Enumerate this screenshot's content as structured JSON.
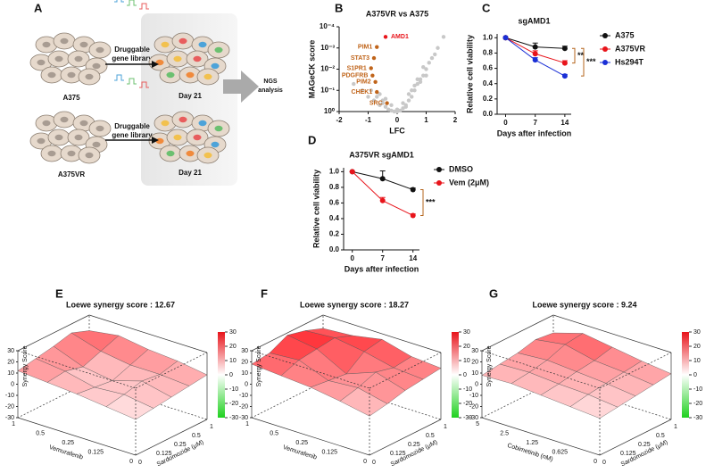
{
  "panel_a": {
    "letter": "A",
    "cells_top": "A375",
    "cells_bottom": "A375VR",
    "library": [
      "Druggable",
      "gene library"
    ],
    "day": "Day 21",
    "ngs": [
      "NGS",
      "analysis"
    ]
  },
  "chart_data": [
    {
      "type": "scatter",
      "letter": "B",
      "title": "A375VR vs A375",
      "xlabel": "LFC",
      "ylabel": "MAGeCK score",
      "xlim": [
        -2,
        2
      ],
      "xticks": [
        -2,
        -1,
        0,
        1,
        2
      ],
      "log_y": true,
      "ylim": [
        1,
        0.0001
      ],
      "yticks": [
        {
          "value": 0.0001,
          "label": "10⁻⁴"
        },
        {
          "value": 0.001,
          "label": "10⁻³"
        },
        {
          "value": 0.01,
          "label": "10⁻²"
        },
        {
          "value": 0.1,
          "label": "10⁻¹"
        },
        {
          "value": 1,
          "label": "10⁰"
        }
      ],
      "points": {
        "color": "#c8c8c8",
        "x": [
          -1.5,
          -1.2,
          -1.0,
          -0.9,
          -0.8,
          -0.7,
          -0.6,
          -0.5,
          -0.4,
          -0.3,
          -0.2,
          -0.1,
          0,
          0.1,
          0.2,
          0.3,
          0.4,
          0.5,
          0.6,
          0.7,
          0.8,
          0.9,
          1.0,
          1.1,
          1.2,
          1.4,
          1.6,
          -0.6,
          -0.4,
          -0.2,
          0,
          0.2,
          0.4,
          0.6,
          0.8,
          1.0,
          -0.5,
          0.3,
          0.5,
          0.7,
          0.9,
          1.3
        ],
        "y": [
          0.05,
          0.1,
          0.2,
          0.1,
          0.3,
          0.2,
          0.5,
          0.4,
          0.6,
          0.8,
          0.9,
          1,
          1,
          0.9,
          0.7,
          0.5,
          0.3,
          0.2,
          0.1,
          0.05,
          0.03,
          0.02,
          0.01,
          0.005,
          0.003,
          0.001,
          0.0003,
          0.15,
          0.25,
          0.5,
          0.8,
          0.4,
          0.15,
          0.06,
          0.04,
          0.02,
          0.3,
          0.6,
          0.1,
          0.03,
          0.008,
          0.002
        ]
      },
      "highlights": {
        "labels": [
          "AMD1",
          "PIM1",
          "STAT3",
          "S1PR1",
          "PDGFRB",
          "PIM2",
          "CHEK1",
          "SRC"
        ],
        "x": [
          -0.4,
          -0.7,
          -0.8,
          -0.9,
          -0.85,
          -0.75,
          -0.7,
          -0.35
        ],
        "y": [
          0.0003,
          0.0009,
          0.003,
          0.009,
          0.02,
          0.04,
          0.12,
          0.4
        ],
        "colors": [
          "#e8141b",
          "#c0641a",
          "#c0641a",
          "#c0641a",
          "#c0641a",
          "#c0641a",
          "#c0641a",
          "#c0641a"
        ]
      }
    },
    {
      "type": "line",
      "letter": "C",
      "title": "sgAMD1",
      "xlabel": "Days after infection",
      "ylabel": "Relative cell viability",
      "x": [
        0,
        7,
        14
      ],
      "xlim": [
        -2,
        15.5
      ],
      "xticks": [
        0,
        7,
        14
      ],
      "ylim": [
        0,
        1.05
      ],
      "yticks": [
        {
          "value": 0,
          "label": "0.0"
        },
        0.2,
        0.4,
        0.6,
        0.8,
        {
          "value": 1,
          "label": "1.0"
        }
      ],
      "series": [
        {
          "name": "A375",
          "color": "#111111",
          "values": [
            1.0,
            0.88,
            0.86
          ],
          "errors": [
            0,
            0.05,
            0.03
          ]
        },
        {
          "name": "A375VR",
          "color": "#e8141b",
          "values": [
            1.0,
            0.79,
            0.67
          ],
          "errors": [
            0,
            0.04,
            0.03
          ]
        },
        {
          "name": "Hs294T",
          "color": "#1a2fd6",
          "values": [
            1.0,
            0.71,
            0.5
          ],
          "errors": [
            0,
            0.03,
            0.02
          ]
        }
      ],
      "significance": [
        "**",
        "***"
      ],
      "annotation_color": "#b5651d"
    },
    {
      "type": "line",
      "letter": "D",
      "title": "A375VR sgAMD1",
      "xlabel": "Days after infection",
      "ylabel": "Relative cell viability",
      "x": [
        0,
        7,
        14
      ],
      "xlim": [
        -2,
        15.5
      ],
      "xticks": [
        0,
        7,
        14
      ],
      "ylim": [
        0,
        1.05
      ],
      "yticks": [
        {
          "value": 0,
          "label": "0.0"
        },
        0.2,
        0.4,
        0.6,
        0.8,
        {
          "value": 1,
          "label": "1.0"
        }
      ],
      "series": [
        {
          "name": "DMSO",
          "color": "#111111",
          "values": [
            1.0,
            0.91,
            0.77
          ],
          "errors": [
            0,
            0.1,
            0.02
          ]
        },
        {
          "name": "Vem (2μM)",
          "color": "#e8141b",
          "values": [
            1.0,
            0.63,
            0.44
          ],
          "errors": [
            0,
            0.04,
            0.02
          ]
        }
      ],
      "significance": [
        "***"
      ],
      "annotation_color": "#b5651d"
    },
    {
      "type": "surface",
      "letter": "E",
      "title": "Loewe synergy score : 12.67",
      "zlabel": "Synergy Score",
      "xlabel": "Sardomozide (μM)",
      "ylabel": "Vemurafenib",
      "x_categories": [
        "0",
        "0.125",
        "0.25",
        "0.5",
        "1"
      ],
      "y_categories": [
        "0",
        "0.125",
        "0.25",
        "0.5",
        "1"
      ],
      "zlim": [
        -30,
        30
      ],
      "zticks": [
        30,
        20,
        10,
        0,
        -10,
        -20,
        -30
      ],
      "z": [
        [
          2,
          4,
          6,
          8,
          10
        ],
        [
          5,
          8,
          12,
          10,
          14
        ],
        [
          8,
          6,
          4,
          10,
          16
        ],
        [
          10,
          12,
          8,
          14,
          20
        ],
        [
          12,
          15,
          18,
          22,
          16
        ]
      ]
    },
    {
      "type": "surface",
      "letter": "F",
      "title": "Loewe synergy score : 18.27",
      "zlabel": "Synergy Score",
      "xlabel": "Sardomozide (μM)",
      "ylabel": "Vemurafenib",
      "x_categories": [
        "0",
        "0.125",
        "0.25",
        "0.5",
        "1"
      ],
      "y_categories": [
        "0",
        "0.125",
        "0.25",
        "0.5",
        "1"
      ],
      "zlim": [
        -30,
        30
      ],
      "zticks": [
        30,
        20,
        10,
        0,
        -10,
        -20,
        -30
      ],
      "z": [
        [
          5,
          8,
          12,
          14,
          16
        ],
        [
          10,
          14,
          20,
          16,
          18
        ],
        [
          14,
          12,
          10,
          22,
          25
        ],
        [
          16,
          22,
          24,
          26,
          20
        ],
        [
          18,
          20,
          28,
          24,
          18
        ]
      ]
    },
    {
      "type": "surface",
      "letter": "G",
      "title": "Loewe synergy score : 9.24",
      "zlabel": "Synergy Score",
      "xlabel": "Sardomozide (μM)",
      "ylabel": "Cobimetinib (nM)",
      "x_categories": [
        "0",
        "0.125",
        "0.25",
        "0.5",
        "1"
      ],
      "y_categories": [
        "0",
        "0.625",
        "1.25",
        "2.5",
        "5"
      ],
      "zlim": [
        -30,
        30
      ],
      "zticks": [
        30,
        20,
        10,
        0,
        -10,
        -20,
        -30
      ],
      "z": [
        [
          3,
          5,
          7,
          9,
          11
        ],
        [
          5,
          8,
          10,
          12,
          14
        ],
        [
          7,
          9,
          12,
          14,
          18
        ],
        [
          9,
          11,
          14,
          20,
          22
        ],
        [
          8,
          10,
          12,
          16,
          14
        ]
      ]
    }
  ]
}
